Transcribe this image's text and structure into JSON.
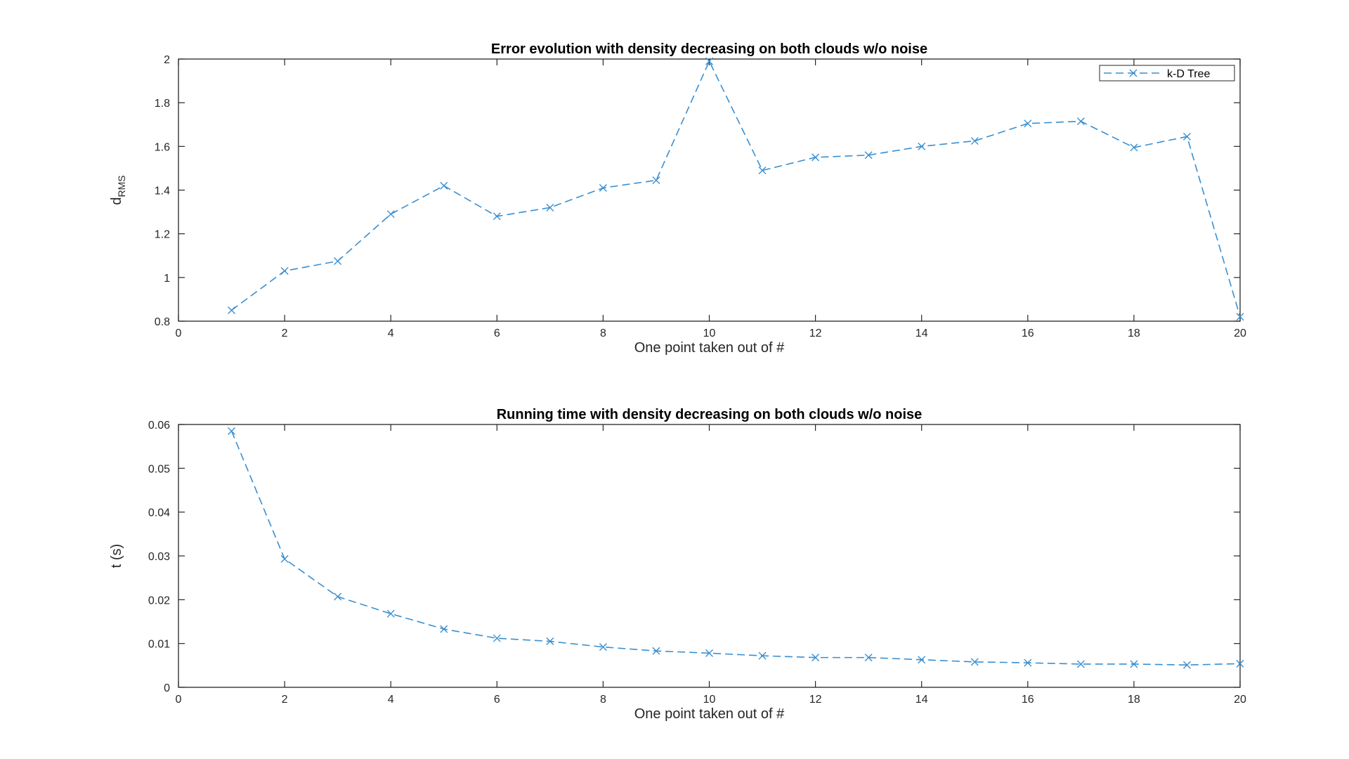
{
  "chart_data": [
    {
      "type": "line",
      "title": "Error evolution with density decreasing on both clouds w/o noise",
      "xlabel": "One point taken out of #",
      "ylabel": "d",
      "ylabel_subscript": "RMS",
      "xlim": [
        0,
        20
      ],
      "ylim": [
        0.8,
        2
      ],
      "xticks": [
        0,
        2,
        4,
        6,
        8,
        10,
        12,
        14,
        16,
        18,
        20
      ],
      "yticks": [
        0.8,
        1,
        1.2,
        1.4,
        1.6,
        1.8,
        2
      ],
      "ytick_labels": [
        "0.8",
        "1",
        "1.2",
        "1.4",
        "1.6",
        "1.8",
        "2"
      ],
      "grid": false,
      "legend": {
        "location": "top-right",
        "entries": [
          "k-D Tree"
        ]
      },
      "color": "#3a8fd0",
      "x": [
        1,
        2,
        3,
        4,
        5,
        6,
        7,
        8,
        9,
        10,
        11,
        12,
        13,
        14,
        15,
        16,
        17,
        18,
        19,
        20
      ],
      "series": [
        {
          "name": "k-D Tree",
          "values": [
            0.85,
            1.03,
            1.075,
            1.29,
            1.42,
            1.28,
            1.32,
            1.41,
            1.445,
            1.99,
            1.49,
            1.55,
            1.56,
            1.6,
            1.625,
            1.705,
            1.715,
            1.595,
            1.645,
            0.82
          ]
        }
      ]
    },
    {
      "type": "line",
      "title": "Running time with density decreasing on both clouds w/o noise",
      "xlabel": "One point taken out of #",
      "ylabel": "t (s)",
      "ylabel_subscript": "",
      "xlim": [
        0,
        20
      ],
      "ylim": [
        0,
        0.06
      ],
      "xticks": [
        0,
        2,
        4,
        6,
        8,
        10,
        12,
        14,
        16,
        18,
        20
      ],
      "yticks": [
        0,
        0.01,
        0.02,
        0.03,
        0.04,
        0.05,
        0.06
      ],
      "ytick_labels": [
        "0",
        "0.01",
        "0.02",
        "0.03",
        "0.04",
        "0.05",
        "0.06"
      ],
      "grid": false,
      "legend": null,
      "color": "#3a8fd0",
      "x": [
        1,
        2,
        3,
        4,
        5,
        6,
        7,
        8,
        9,
        10,
        11,
        12,
        13,
        14,
        15,
        16,
        17,
        18,
        19,
        20
      ],
      "series": [
        {
          "name": "k-D Tree",
          "values": [
            0.0585,
            0.0293,
            0.0207,
            0.0168,
            0.0133,
            0.0112,
            0.0105,
            0.0092,
            0.0083,
            0.0078,
            0.0072,
            0.0068,
            0.0068,
            0.0063,
            0.0058,
            0.0056,
            0.0053,
            0.0053,
            0.0051,
            0.0054
          ]
        }
      ]
    }
  ]
}
